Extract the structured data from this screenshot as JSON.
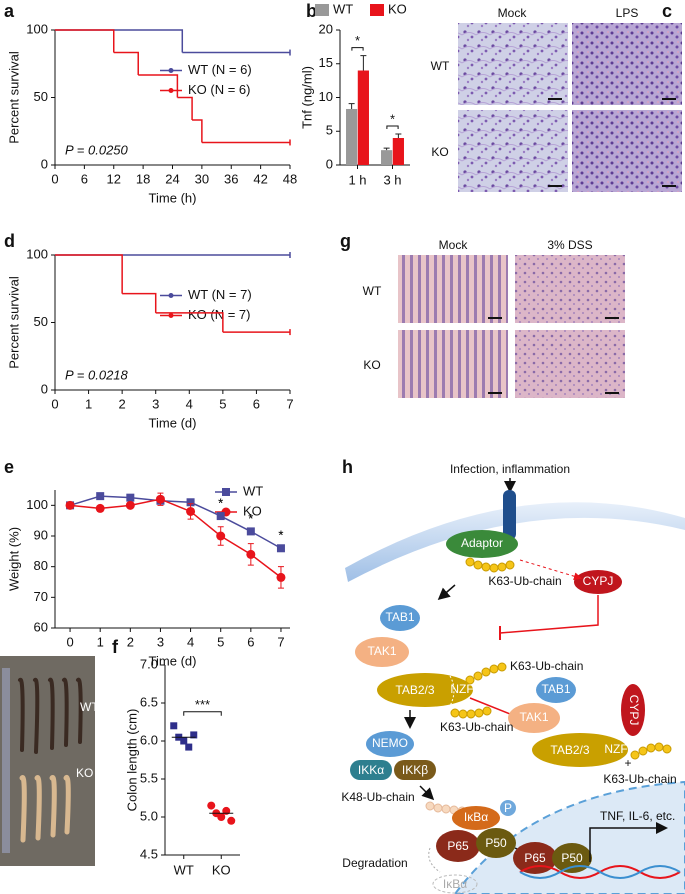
{
  "chart_data": [
    {
      "panel": "a",
      "type": "line",
      "step": true,
      "x_label": "Time (h)",
      "y_label": "Percent survival",
      "xlim": [
        0,
        48
      ],
      "xticks": [
        0,
        6,
        12,
        18,
        24,
        30,
        36,
        42,
        48
      ],
      "ylim": [
        0,
        100
      ],
      "yticks": [
        0,
        50,
        100
      ],
      "legend": "center right",
      "annotation": "P = 0.0250",
      "series": [
        {
          "name": "WT (N = 6)",
          "color": "#4b4b9c",
          "x": [
            0,
            26,
            48
          ],
          "values": [
            100,
            83.3,
            83.3
          ]
        },
        {
          "name": "KO (N = 6)",
          "color": "#e8141b",
          "x": [
            0,
            12,
            17,
            25,
            28,
            30,
            48
          ],
          "values": [
            100,
            83.3,
            66.7,
            50,
            33.3,
            16.7,
            16.7
          ]
        }
      ]
    },
    {
      "panel": "b",
      "type": "bar",
      "y_label": "Tnf (ng/ml)",
      "categories": [
        "1 h",
        "3 h"
      ],
      "ylim": [
        0,
        20
      ],
      "yticks": [
        0,
        5,
        10,
        15,
        20
      ],
      "legend": "top",
      "significance": [
        "*",
        "*"
      ],
      "series": [
        {
          "name": "WT",
          "color": "#999999",
          "values": [
            8.3,
            2.2
          ],
          "errors": [
            0.8,
            0.3
          ]
        },
        {
          "name": "KO",
          "color": "#e8141b",
          "values": [
            14,
            4.0
          ],
          "errors": [
            2.2,
            0.6
          ]
        }
      ]
    },
    {
      "panel": "d",
      "type": "line",
      "step": true,
      "x_label": "Time (d)",
      "y_label": "Percent survival",
      "xlim": [
        0,
        7
      ],
      "xticks": [
        0,
        1,
        2,
        3,
        4,
        5,
        6,
        7
      ],
      "ylim": [
        0,
        100
      ],
      "yticks": [
        0,
        50,
        100
      ],
      "legend": "center right",
      "annotation": "P = 0.0218",
      "series": [
        {
          "name": "WT (N = 7)",
          "color": "#4b4b9c",
          "x": [
            0,
            7
          ],
          "values": [
            100,
            100
          ]
        },
        {
          "name": "KO (N = 7)",
          "color": "#e8141b",
          "x": [
            0,
            2,
            3,
            5,
            7
          ],
          "values": [
            100,
            71.4,
            57.1,
            42.9,
            42.9
          ]
        }
      ]
    },
    {
      "panel": "e",
      "type": "line",
      "x_label": "Time (d)",
      "y_label": "Weight (%)",
      "x": [
        0,
        1,
        2,
        3,
        4,
        5,
        6,
        7
      ],
      "xlim": [
        -0.5,
        7.3
      ],
      "xticks": [
        0,
        1,
        2,
        3,
        4,
        5,
        6,
        7
      ],
      "ylim": [
        60,
        105
      ],
      "yticks": [
        60,
        70,
        80,
        90,
        100
      ],
      "legend": "upper right",
      "significance": [
        null,
        null,
        null,
        null,
        null,
        "*",
        "*",
        "*"
      ],
      "series": [
        {
          "name": "WT",
          "color": "#4b4b9c",
          "marker": "square",
          "values": [
            100,
            103,
            102.5,
            101.5,
            101,
            96.5,
            91.5,
            86
          ],
          "errors": [
            0,
            0,
            0,
            1,
            0.5,
            1,
            1,
            1
          ]
        },
        {
          "name": "KO",
          "color": "#e8141b",
          "marker": "circle",
          "values": [
            100,
            99,
            100,
            102,
            98,
            90,
            84,
            76.5
          ],
          "errors": [
            0,
            0,
            0,
            2,
            2.5,
            3,
            3.5,
            3.5
          ]
        }
      ]
    },
    {
      "panel": "f",
      "type": "strip",
      "y_label": "Colon length (cm)",
      "categories": [
        "WT",
        "KO"
      ],
      "ylim": [
        4.5,
        7.0
      ],
      "yticks": [
        4.5,
        {
          "value": 5,
          "label": "5.0"
        },
        5.5,
        {
          "value": 6,
          "label": "6.0"
        },
        6.5,
        {
          "value": 7,
          "label": "7.0"
        }
      ],
      "significance": "***",
      "means": [
        6.05,
        5.05
      ],
      "series": [
        {
          "color": "#2e2e8a",
          "marker": "square",
          "values": [
            6.2,
            6.05,
            6.0,
            5.92,
            6.08
          ]
        },
        {
          "color": "#e8141b",
          "marker": "circle",
          "values": [
            5.15,
            5.05,
            5.0,
            5.08,
            4.95
          ]
        }
      ]
    }
  ],
  "images": [
    {
      "panel": "c",
      "columns": [
        "Mock",
        "LPS"
      ],
      "rows": [
        "WT",
        "KO"
      ]
    },
    {
      "panel": "g",
      "columns": [
        "Mock",
        "3% DSS"
      ],
      "rows": [
        "WT",
        "KO"
      ]
    },
    {
      "labels": [
        "WT",
        "KO"
      ]
    }
  ],
  "diagram": {
    "panel": "h",
    "labels": [
      "Infection, inflammation",
      "Adaptor",
      "K63-Ub-chain",
      "CYPJ",
      "TAB1",
      "TAK1",
      "TAB2/3",
      "NZF",
      "K63-Ub-chain",
      "K63-Ub-chain",
      "TAB1",
      "TAK1",
      "TAB2/3",
      "NZF",
      "CYPJ",
      "+",
      "K63-Ub-chain",
      "NEMO",
      "IKKα",
      "IKKβ",
      "K48-Ub-chain",
      "IκBα",
      "P",
      "P65",
      "P50",
      "Degradation",
      "IκBα",
      "TNF, IL-6, etc.",
      "P65",
      "P50"
    ]
  }
}
